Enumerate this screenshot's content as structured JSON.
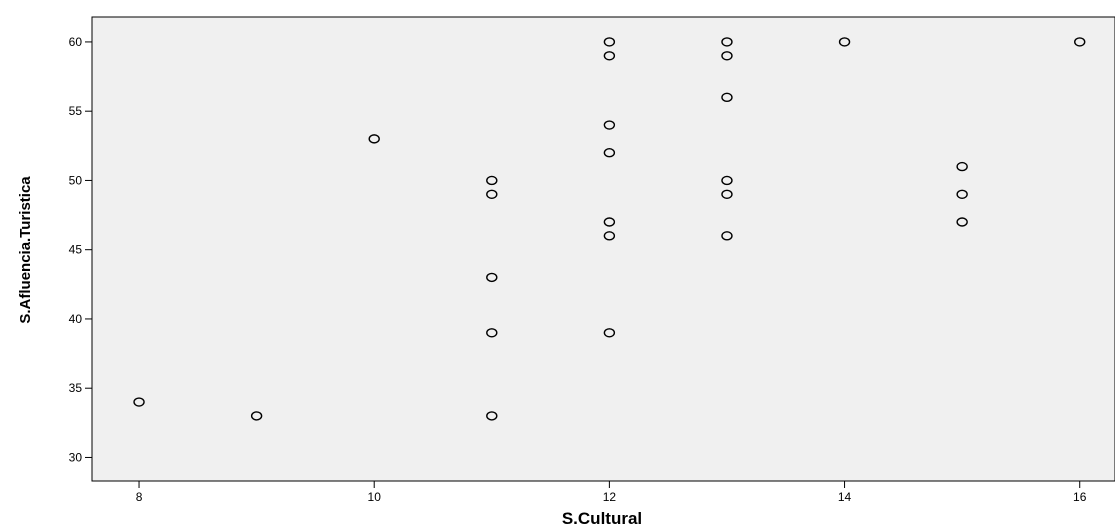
{
  "chart_data": {
    "type": "scatter",
    "xlabel": "S.Cultural",
    "ylabel": "S.Afluencia.Turistica",
    "xlim": [
      7.6,
      16.3
    ],
    "ylim": [
      28.3,
      61.8
    ],
    "xticks": [
      8,
      10,
      12,
      14,
      16
    ],
    "yticks": [
      30,
      35,
      40,
      45,
      50,
      55,
      60
    ],
    "xtick_labels": [
      "8",
      "10",
      "12",
      "14",
      "16"
    ],
    "ytick_labels": [
      "30",
      "35",
      "40",
      "45",
      "50",
      "55",
      "60"
    ],
    "grid": false,
    "marker": "open-circle",
    "plot_background": "#f0f0f0",
    "marker_color": "#000000",
    "points": [
      {
        "x": 8,
        "y": 34
      },
      {
        "x": 9,
        "y": 33
      },
      {
        "x": 10,
        "y": 53
      },
      {
        "x": 11,
        "y": 50
      },
      {
        "x": 11,
        "y": 49
      },
      {
        "x": 11,
        "y": 43
      },
      {
        "x": 11,
        "y": 39
      },
      {
        "x": 11,
        "y": 33
      },
      {
        "x": 12,
        "y": 60
      },
      {
        "x": 12,
        "y": 59
      },
      {
        "x": 12,
        "y": 54
      },
      {
        "x": 12,
        "y": 52
      },
      {
        "x": 12,
        "y": 47
      },
      {
        "x": 12,
        "y": 46
      },
      {
        "x": 12,
        "y": 39
      },
      {
        "x": 13,
        "y": 60
      },
      {
        "x": 13,
        "y": 59
      },
      {
        "x": 13,
        "y": 56
      },
      {
        "x": 13,
        "y": 50
      },
      {
        "x": 13,
        "y": 49
      },
      {
        "x": 13,
        "y": 46
      },
      {
        "x": 14,
        "y": 60
      },
      {
        "x": 15,
        "y": 51
      },
      {
        "x": 15,
        "y": 49
      },
      {
        "x": 15,
        "y": 47
      },
      {
        "x": 16,
        "y": 60
      }
    ]
  }
}
